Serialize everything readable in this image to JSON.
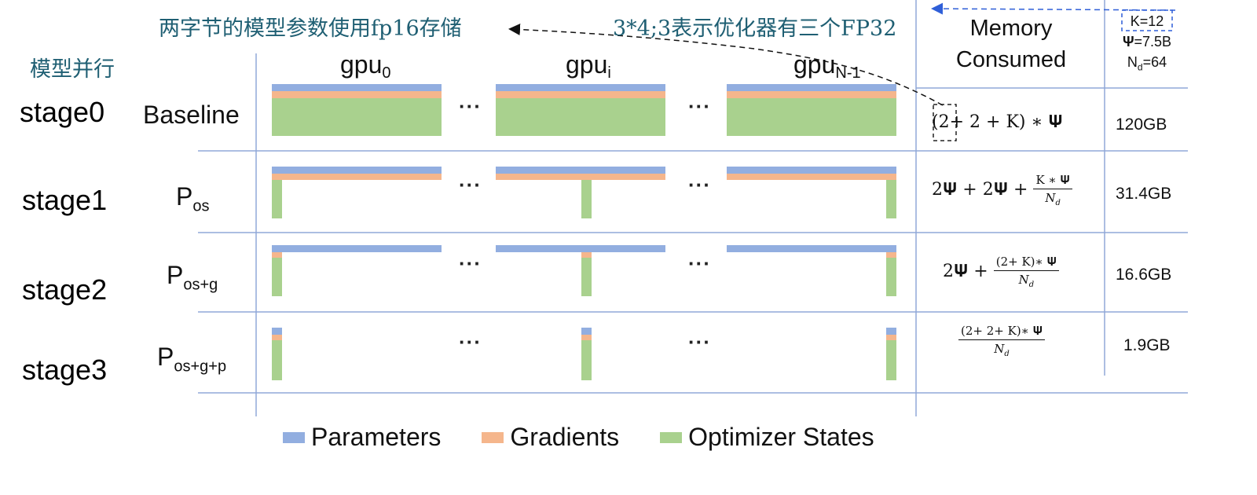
{
  "colors": {
    "parameters": "#92aee0",
    "gradients": "#f5b68c",
    "optimizer_states": "#a9d18e",
    "grid": "#90a8d8",
    "note": "#1f5f73",
    "arrow_blue": "#2f5fd8"
  },
  "annotations": {
    "fp16_note": "两字节的模型参数使用fp16存储",
    "fp32_note": "3*4;3表示优化器有三个FP32",
    "model_parallel": "模型并行"
  },
  "header": {
    "gpu_0": "gpu",
    "gpu_0_sub": "0",
    "gpu_i": "gpu",
    "gpu_i_sub": "i",
    "gpu_n": "gpu",
    "gpu_n_sub": "N-1",
    "memory_line1": "Memory",
    "memory_line2": "Consumed",
    "k": "K=12",
    "psi_sym": "Ψ",
    "psi_val": "=7.5B",
    "nd_sym": "N",
    "nd_sub": "d",
    "nd_val": "=64"
  },
  "dots": "···",
  "rows": [
    {
      "stage": "stage0",
      "label_main": "Baseline",
      "label_sub": "",
      "memory": "120GB"
    },
    {
      "stage": "stage1",
      "label_main": "P",
      "label_sub": "os",
      "memory": "31.4GB"
    },
    {
      "stage": "stage2",
      "label_main": "P",
      "label_sub": "os+g",
      "memory": "16.6GB"
    },
    {
      "stage": "stage3",
      "label_main": "P",
      "label_sub": "os+g+p",
      "memory": "1.9GB"
    }
  ],
  "formulas": {
    "f0_a": "(",
    "f0_b": "2",
    "f0_c": "+ 2 + K) ∗ 𝚿",
    "f1_a": "2𝚿 + 2𝚿 + ",
    "f1_num": "K ∗ 𝚿",
    "f1_den": "N",
    "f1_den_sub": "d",
    "f2_a": "2𝚿 + ",
    "f2_num": "(2+ K)∗ 𝚿",
    "f2_den": "N",
    "f2_den_sub": "d",
    "f3_num": "(2+ 2+ K)∗ 𝚿",
    "f3_den": "N",
    "f3_den_sub": "d"
  },
  "legend": [
    {
      "label": "Parameters",
      "color": "#92aee0"
    },
    {
      "label": "Gradients",
      "color": "#f5b68c"
    },
    {
      "label": "Optimizer States",
      "color": "#a9d18e"
    }
  ]
}
